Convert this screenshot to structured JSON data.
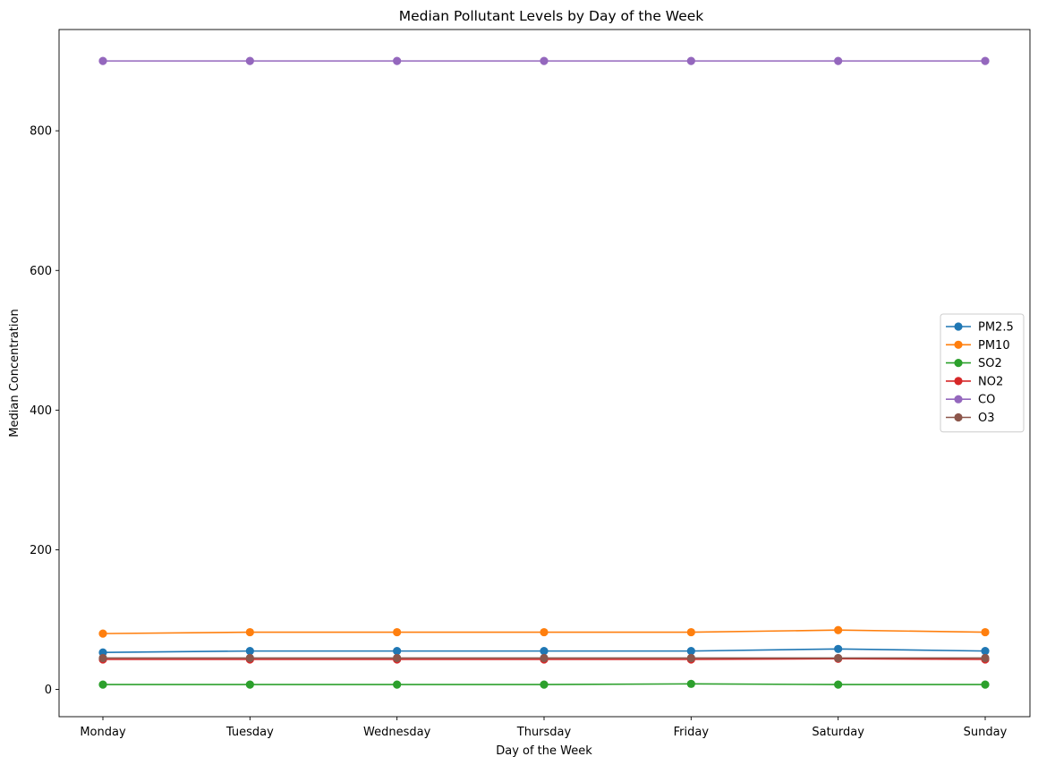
{
  "chart_data": {
    "type": "line",
    "title": "Median Pollutant Levels by Day of the Week",
    "xlabel": "Day of the Week",
    "ylabel": "Median Concentration",
    "categories": [
      "Monday",
      "Tuesday",
      "Wednesday",
      "Thursday",
      "Friday",
      "Saturday",
      "Sunday"
    ],
    "ylim": [
      -39,
      945
    ],
    "yticks": [
      0,
      200,
      400,
      600,
      800
    ],
    "grid": false,
    "legend_position": "center-right",
    "series": [
      {
        "name": "PM2.5",
        "color": "#1f77b4",
        "values": [
          53,
          55,
          55,
          55,
          55,
          58,
          55
        ]
      },
      {
        "name": "PM10",
        "color": "#ff7f0e",
        "values": [
          80,
          82,
          82,
          82,
          82,
          85,
          82
        ]
      },
      {
        "name": "SO2",
        "color": "#2ca02c",
        "values": [
          7,
          7,
          7,
          7,
          8,
          7,
          7
        ]
      },
      {
        "name": "NO2",
        "color": "#d62728",
        "values": [
          43,
          43,
          43,
          43,
          43,
          44,
          43
        ]
      },
      {
        "name": "CO",
        "color": "#9467bd",
        "values": [
          900,
          900,
          900,
          900,
          900,
          900,
          900
        ]
      },
      {
        "name": "O3",
        "color": "#8c564b",
        "values": [
          45,
          45,
          45,
          45,
          45,
          45,
          45
        ]
      }
    ]
  }
}
